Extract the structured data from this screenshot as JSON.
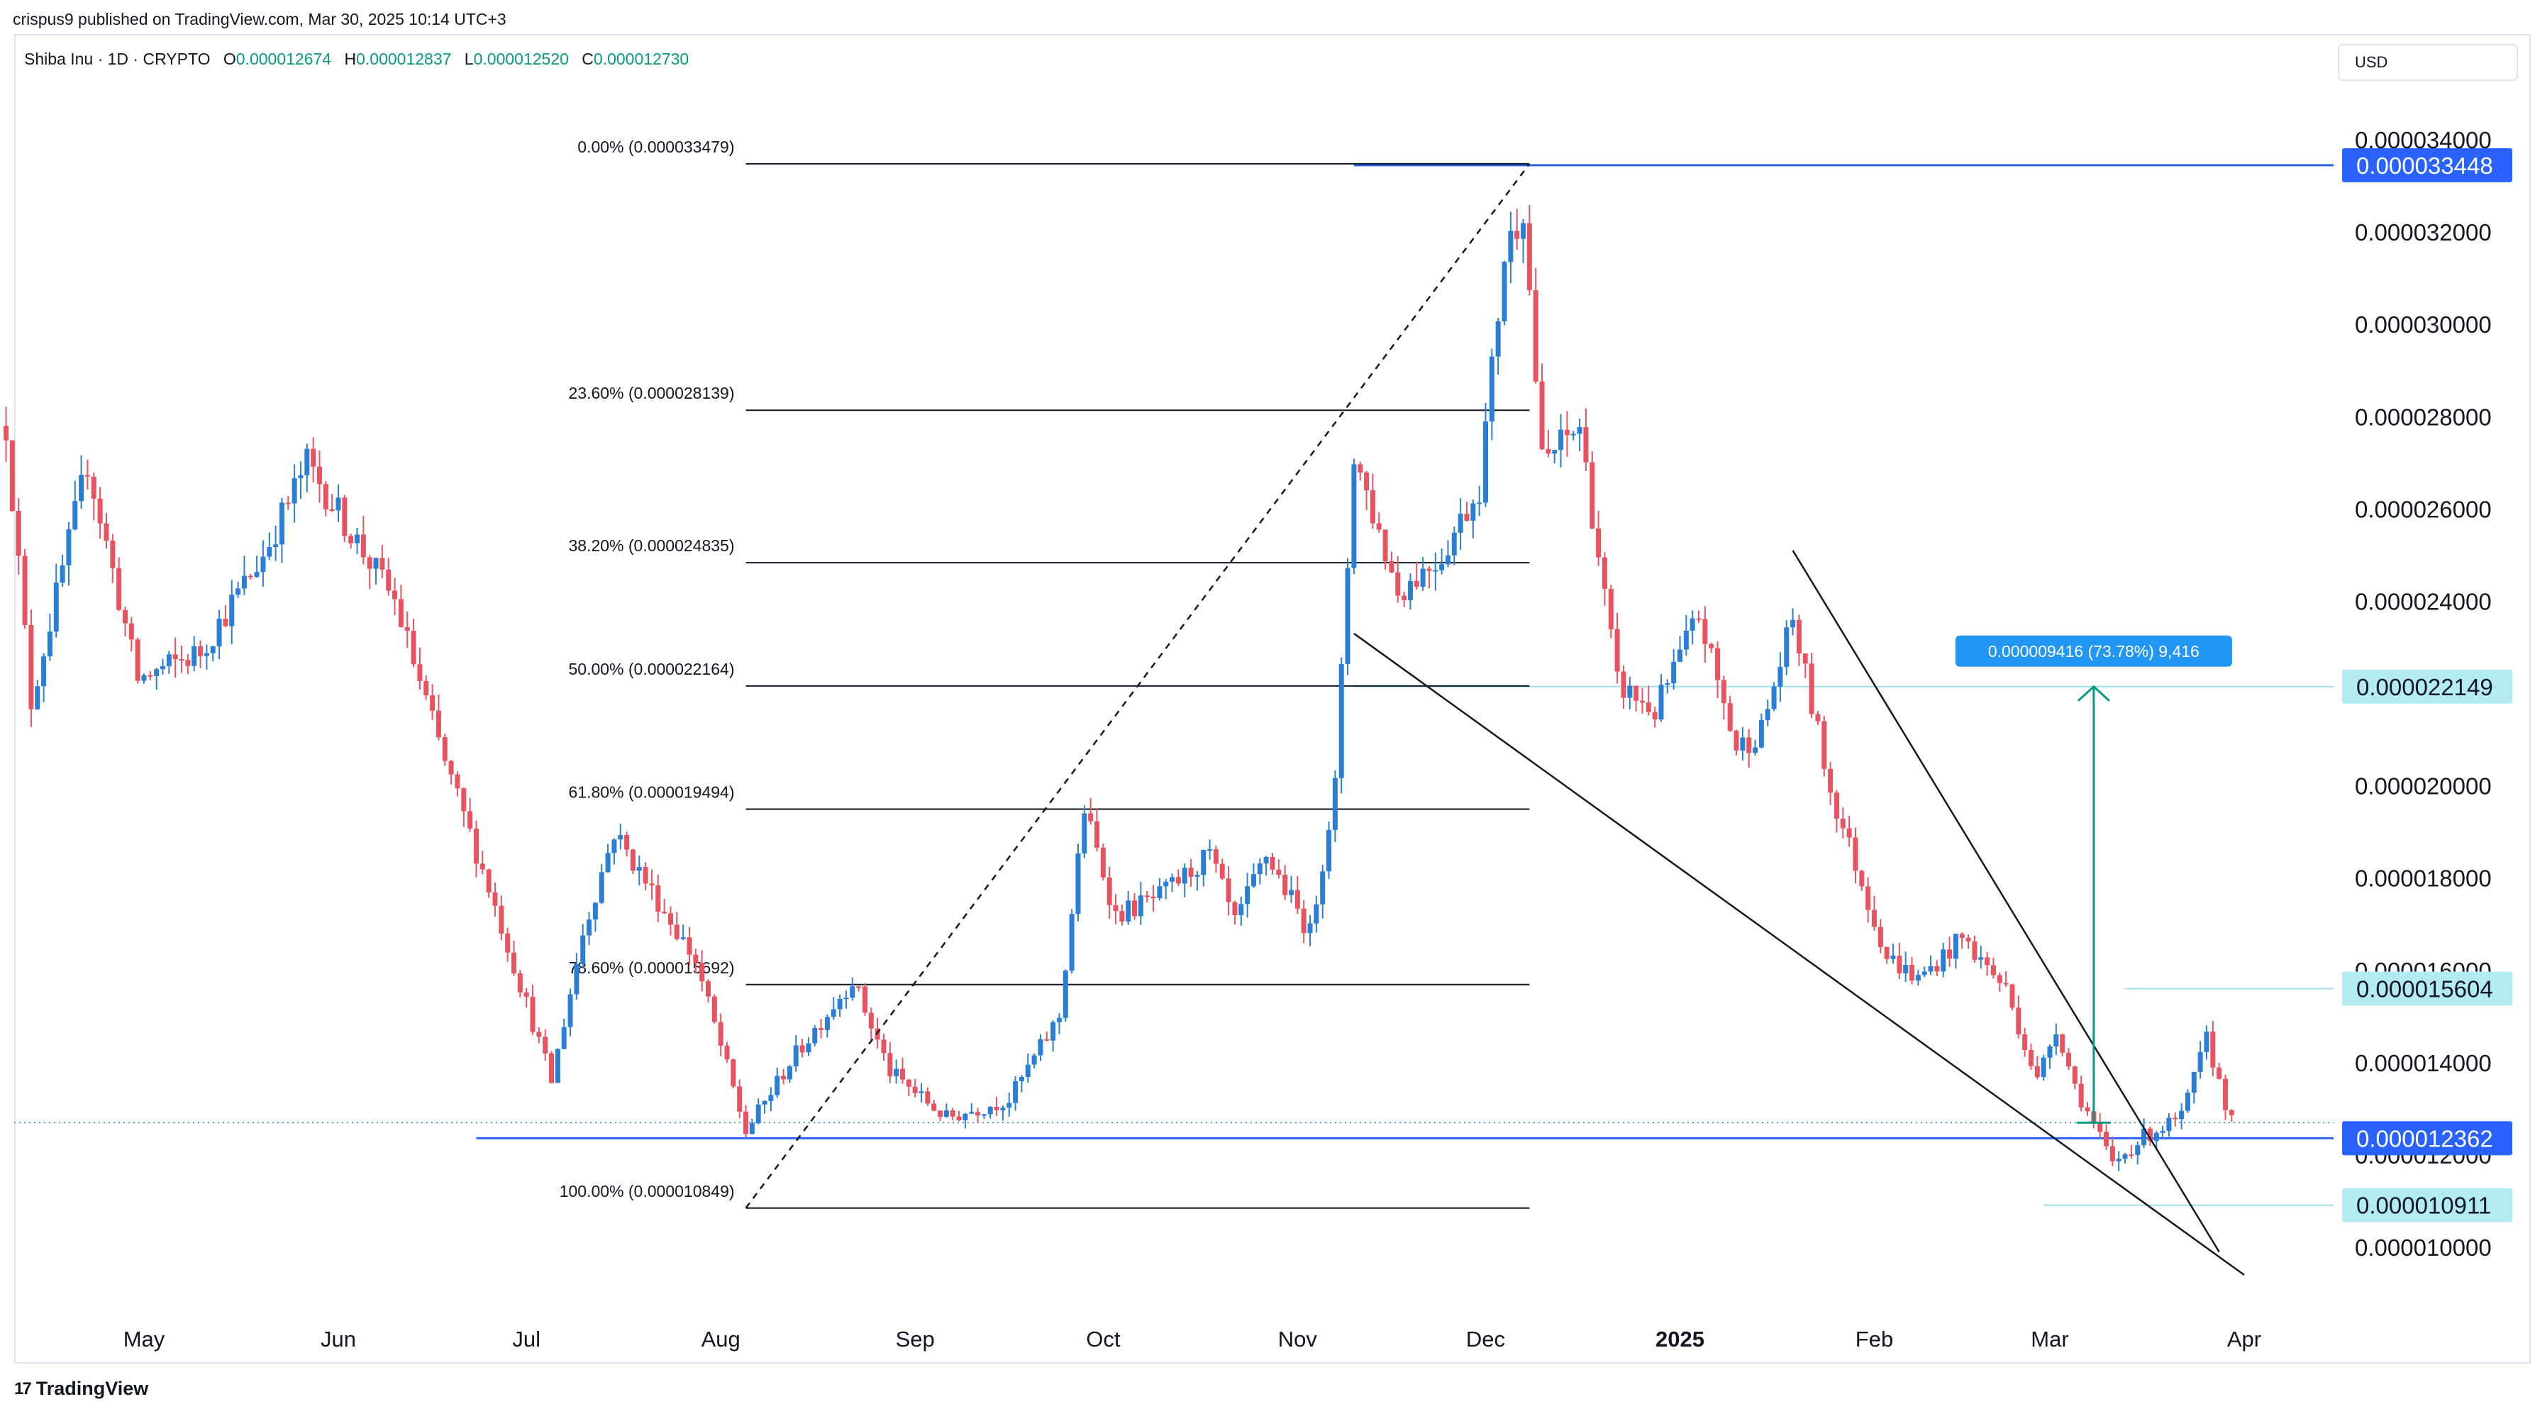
{
  "header": {
    "text": "crispus9 published on TradingView.com, Mar 30, 2025 10:14 UTC+3"
  },
  "symbol": {
    "title": "Shiba Inu · 1D · CRYPTO",
    "open_label": "O",
    "open": "0.000012674",
    "high_label": "H",
    "high": "0.000012837",
    "low_label": "L",
    "low": "0.000012520",
    "close_label": "C",
    "close": "0.000012730"
  },
  "currency": "USD",
  "footer": {
    "logo_text": "TradingView",
    "logo_mark": "17"
  },
  "chart_data": {
    "type": "candlestick",
    "interval": "1D",
    "grid": false,
    "y_axis": {
      "position": "right",
      "range": [
        8.7e-06,
        3.57e-05
      ],
      "ticks": [
        "0.000010000",
        "0.000012000",
        "0.000014000",
        "0.000016000",
        "0.000018000",
        "0.000020000",
        "0.000022000",
        "0.000024000",
        "0.000026000",
        "0.000028000",
        "0.000030000",
        "0.000032000",
        "0.000034000"
      ]
    },
    "x_axis": {
      "ticks": [
        {
          "label": "May",
          "date": "2024-05-01",
          "bold": false
        },
        {
          "label": "Jun",
          "date": "2024-06-01",
          "bold": false
        },
        {
          "label": "Jul",
          "date": "2024-07-01",
          "bold": false
        },
        {
          "label": "Aug",
          "date": "2024-08-01",
          "bold": false
        },
        {
          "label": "Sep",
          "date": "2024-09-01",
          "bold": false
        },
        {
          "label": "Oct",
          "date": "2024-10-01",
          "bold": false
        },
        {
          "label": "Nov",
          "date": "2024-11-01",
          "bold": false
        },
        {
          "label": "Dec",
          "date": "2024-12-01",
          "bold": false
        },
        {
          "label": "2025",
          "date": "2025-01-01",
          "bold": true
        },
        {
          "label": "Feb",
          "date": "2025-02-01",
          "bold": false
        },
        {
          "label": "Mar",
          "date": "2025-03-01",
          "bold": false
        },
        {
          "label": "Apr",
          "date": "2025-04-01",
          "bold": false
        }
      ]
    },
    "price_anchors": [
      {
        "date": "2024-04-09",
        "price": 2.78e-05
      },
      {
        "date": "2024-04-13",
        "price": 2.18e-05
      },
      {
        "date": "2024-04-22",
        "price": 2.7e-05
      },
      {
        "date": "2024-04-30",
        "price": 2.23e-05
      },
      {
        "date": "2024-05-10",
        "price": 2.29e-05
      },
      {
        "date": "2024-05-20",
        "price": 2.5e-05
      },
      {
        "date": "2024-05-27",
        "price": 2.7e-05
      },
      {
        "date": "2024-06-03",
        "price": 2.55e-05
      },
      {
        "date": "2024-06-10",
        "price": 2.4e-05
      },
      {
        "date": "2024-06-18",
        "price": 2.05e-05
      },
      {
        "date": "2024-06-25",
        "price": 1.78e-05
      },
      {
        "date": "2024-07-05",
        "price": 1.36e-05
      },
      {
        "date": "2024-07-10",
        "price": 1.68e-05
      },
      {
        "date": "2024-07-15",
        "price": 1.9e-05
      },
      {
        "date": "2024-07-22",
        "price": 1.75e-05
      },
      {
        "date": "2024-07-28",
        "price": 1.62e-05
      },
      {
        "date": "2024-08-05",
        "price": 1.25e-05
      },
      {
        "date": "2024-08-12",
        "price": 1.4e-05
      },
      {
        "date": "2024-08-22",
        "price": 1.58e-05
      },
      {
        "date": "2024-08-28",
        "price": 1.38e-05
      },
      {
        "date": "2024-09-06",
        "price": 1.28e-05
      },
      {
        "date": "2024-09-16",
        "price": 1.32e-05
      },
      {
        "date": "2024-09-24",
        "price": 1.5e-05
      },
      {
        "date": "2024-09-28",
        "price": 1.95e-05
      },
      {
        "date": "2024-10-03",
        "price": 1.72e-05
      },
      {
        "date": "2024-10-10",
        "price": 1.76e-05
      },
      {
        "date": "2024-10-18",
        "price": 1.85e-05
      },
      {
        "date": "2024-10-22",
        "price": 1.7e-05
      },
      {
        "date": "2024-10-27",
        "price": 1.85e-05
      },
      {
        "date": "2024-11-03",
        "price": 1.68e-05
      },
      {
        "date": "2024-11-07",
        "price": 2e-05
      },
      {
        "date": "2024-11-10",
        "price": 2.72e-05
      },
      {
        "date": "2024-11-17",
        "price": 2.42e-05
      },
      {
        "date": "2024-11-24",
        "price": 2.5e-05
      },
      {
        "date": "2024-11-30",
        "price": 2.65e-05
      },
      {
        "date": "2024-12-04",
        "price": 3.15e-05
      },
      {
        "date": "2024-12-07",
        "price": 3.26e-05
      },
      {
        "date": "2024-12-10",
        "price": 2.7e-05
      },
      {
        "date": "2024-12-16",
        "price": 2.78e-05
      },
      {
        "date": "2024-12-22",
        "price": 2.22e-05
      },
      {
        "date": "2024-12-28",
        "price": 2.16e-05
      },
      {
        "date": "2025-01-04",
        "price": 2.37e-05
      },
      {
        "date": "2025-01-10",
        "price": 2.08e-05
      },
      {
        "date": "2025-01-14",
        "price": 2.12e-05
      },
      {
        "date": "2025-01-19",
        "price": 2.36e-05
      },
      {
        "date": "2025-01-25",
        "price": 1.99e-05
      },
      {
        "date": "2025-02-03",
        "price": 1.63e-05
      },
      {
        "date": "2025-02-08",
        "price": 1.58e-05
      },
      {
        "date": "2025-02-15",
        "price": 1.67e-05
      },
      {
        "date": "2025-02-22",
        "price": 1.56e-05
      },
      {
        "date": "2025-02-27",
        "price": 1.36e-05
      },
      {
        "date": "2025-03-02",
        "price": 1.48e-05
      },
      {
        "date": "2025-03-05",
        "price": 1.35e-05
      },
      {
        "date": "2025-03-11",
        "price": 1.18e-05
      },
      {
        "date": "2025-03-16",
        "price": 1.24e-05
      },
      {
        "date": "2025-03-22",
        "price": 1.28e-05
      },
      {
        "date": "2025-03-26",
        "price": 1.45e-05
      },
      {
        "date": "2025-03-30",
        "price": 1.27e-05
      }
    ],
    "fibonacci": {
      "levels": [
        {
          "label": "0.00% (0.000033479)",
          "price": 3.3479e-05
        },
        {
          "label": "23.60% (0.000028139)",
          "price": 2.8139e-05
        },
        {
          "label": "38.20% (0.000024835)",
          "price": 2.4835e-05
        },
        {
          "label": "50.00% (0.000022164)",
          "price": 2.2164e-05
        },
        {
          "label": "61.80% (0.000019494)",
          "price": 1.9494e-05
        },
        {
          "label": "78.60% (0.000015692)",
          "price": 1.5692e-05
        },
        {
          "label": "100.00% (0.000010849)",
          "price": 1.0849e-05
        }
      ],
      "start_date": "2024-08-05",
      "end_date": "2024-12-08"
    },
    "horizontal_levels": [
      {
        "price": 3.3448e-05,
        "label": "0.000033448",
        "style": "blue",
        "extends_left_from": "2024-11-10"
      },
      {
        "price": 2.2149e-05,
        "label": "0.000022149",
        "style": "cyan",
        "extends_left_from": "2024-11-10"
      },
      {
        "price": 1.5604e-05,
        "label": "0.000015604",
        "style": "cyan",
        "extends_left_from": "2025-03-13"
      },
      {
        "price": 1.2362e-05,
        "label": "0.000012362",
        "style": "blue",
        "extends_left_from": "2024-06-23"
      },
      {
        "price": 1.0911e-05,
        "label": "0.000010911",
        "style": "cyan",
        "extends_left_from": "2025-02-28"
      }
    ],
    "trendlines": [
      {
        "from": {
          "date": "2024-08-05",
          "price": 1.0849e-05
        },
        "to": {
          "date": "2024-12-08",
          "price": 3.3479e-05
        },
        "style": "dashed"
      },
      {
        "from": {
          "date": "2024-11-10",
          "price": 2.33e-05
        },
        "to": {
          "date": "2025-04-01",
          "price": 9.4e-06
        },
        "style": "solid"
      },
      {
        "from": {
          "date": "2025-01-19",
          "price": 2.51e-05
        },
        "to": {
          "date": "2025-03-28",
          "price": 9.9e-06
        },
        "style": "solid"
      }
    ],
    "measurement": {
      "label": "0.000009416 (73.78%) 9,416",
      "base_date": "2025-03-08",
      "base_price": 1.27e-05,
      "target_price": 2.2149e-05
    },
    "last_price_line": {
      "price": 1.27e-05
    }
  }
}
